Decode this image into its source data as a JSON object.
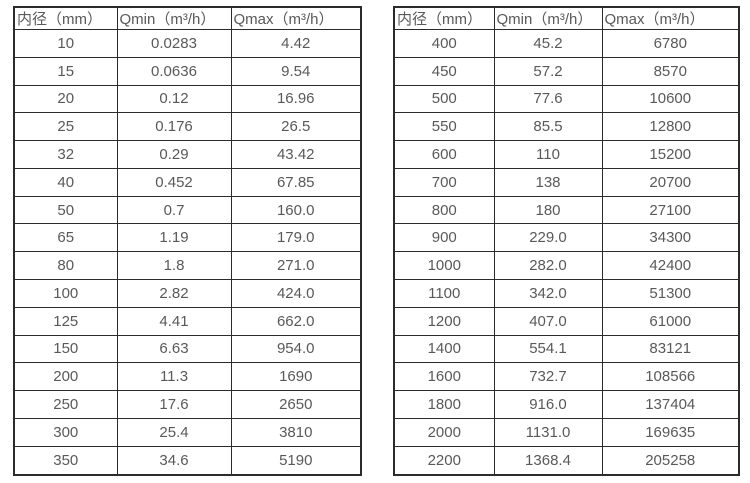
{
  "styles": {
    "background": "#ffffff",
    "text_color": "#595959",
    "border_color": "#2b2b2b"
  },
  "tables": [
    {
      "name": "flow-spec-table-small-diameters",
      "headers": [
        "内径（mm）",
        "Qmin（m³/h）",
        "Qmax（m³/h）"
      ],
      "rows": [
        [
          "10",
          "0.0283",
          "4.42"
        ],
        [
          "15",
          "0.0636",
          "9.54"
        ],
        [
          "20",
          "0.12",
          "16.96"
        ],
        [
          "25",
          "0.176",
          "26.5"
        ],
        [
          "32",
          "0.29",
          "43.42"
        ],
        [
          "40",
          "0.452",
          "67.85"
        ],
        [
          "50",
          "0.7",
          "160.0"
        ],
        [
          "65",
          "1.19",
          "179.0"
        ],
        [
          "80",
          "1.8",
          "271.0"
        ],
        [
          "100",
          "2.82",
          "424.0"
        ],
        [
          "125",
          "4.41",
          "662.0"
        ],
        [
          "150",
          "6.63",
          "954.0"
        ],
        [
          "200",
          "11.3",
          "1690"
        ],
        [
          "250",
          "17.6",
          "2650"
        ],
        [
          "300",
          "25.4",
          "3810"
        ],
        [
          "350",
          "34.6",
          "5190"
        ]
      ]
    },
    {
      "name": "flow-spec-table-large-diameters",
      "headers": [
        "内径（mm）",
        "Qmin（m³/h）",
        "Qmax（m³/h）"
      ],
      "rows": [
        [
          "400",
          "45.2",
          "6780"
        ],
        [
          "450",
          "57.2",
          "8570"
        ],
        [
          "500",
          "77.6",
          "10600"
        ],
        [
          "550",
          "85.5",
          "12800"
        ],
        [
          "600",
          "110",
          "15200"
        ],
        [
          "700",
          "138",
          "20700"
        ],
        [
          "800",
          "180",
          "27100"
        ],
        [
          "900",
          "229.0",
          "34300"
        ],
        [
          "1000",
          "282.0",
          "42400"
        ],
        [
          "1100",
          "342.0",
          "51300"
        ],
        [
          "1200",
          "407.0",
          "61000"
        ],
        [
          "1400",
          "554.1",
          "83121"
        ],
        [
          "1600",
          "732.7",
          "108566"
        ],
        [
          "1800",
          "916.0",
          "137404"
        ],
        [
          "2000",
          "1131.0",
          "169635"
        ],
        [
          "2200",
          "1368.4",
          "205258"
        ]
      ]
    }
  ]
}
